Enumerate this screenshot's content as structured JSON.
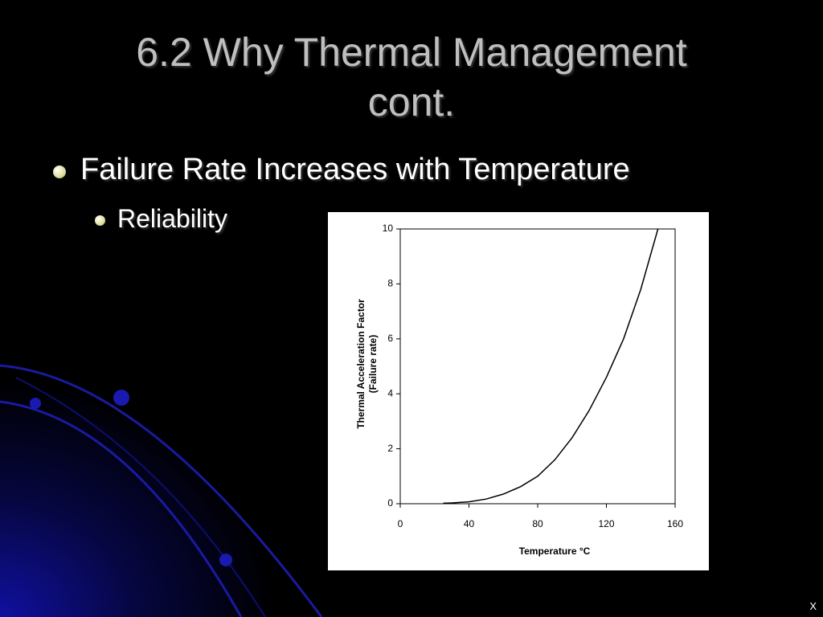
{
  "slide": {
    "title": "6.2 Why Thermal Management cont.",
    "bullet": "Failure Rate Increases with Temperature",
    "sub_bullet": "Reliability",
    "corner_mark": "X"
  },
  "chart_data": {
    "type": "line",
    "xlabel": "Temperature °C",
    "ylabel": "Thermal Acceleration Factor",
    "ylabel_sub": "(Failure rate)",
    "x": [
      25,
      30,
      40,
      50,
      60,
      70,
      80,
      90,
      100,
      110,
      120,
      130,
      140,
      150
    ],
    "values": [
      0.02,
      0.03,
      0.07,
      0.17,
      0.35,
      0.62,
      1.0,
      1.6,
      2.4,
      3.4,
      4.6,
      6.0,
      7.8,
      10
    ],
    "color": "#000000",
    "xlim": [
      0,
      160
    ],
    "xticks": [
      0,
      40,
      80,
      120,
      160
    ],
    "ylim": [
      0,
      10
    ],
    "yticks": [
      0,
      2,
      4,
      6,
      8,
      10
    ]
  }
}
